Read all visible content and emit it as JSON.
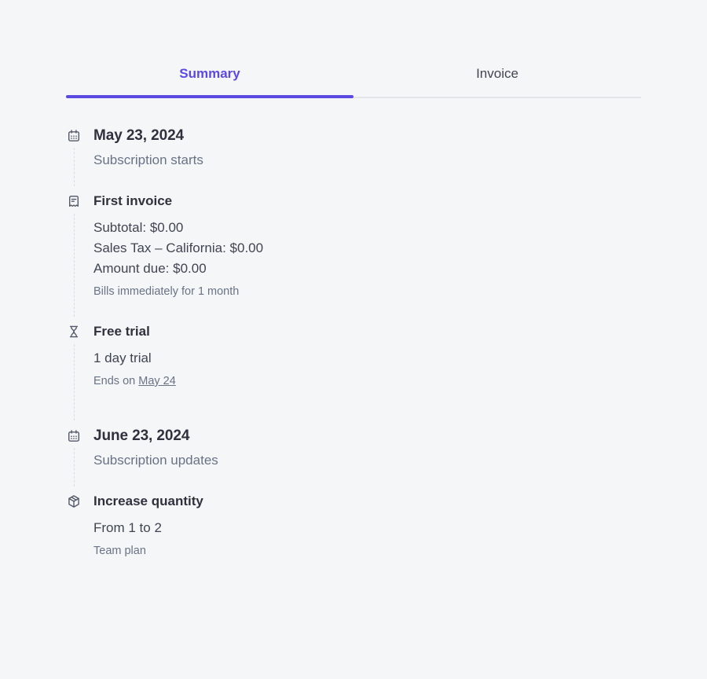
{
  "page": {
    "background": "#f5f6f8",
    "accent": "#5b4ae1",
    "text_dark": "#30313d",
    "text_body": "#414552",
    "text_muted": "#687385"
  },
  "tabs": {
    "summary": {
      "label": "Summary",
      "active": true
    },
    "invoice": {
      "label": "Invoice",
      "active": false
    }
  },
  "timeline": [
    {
      "kind": "date",
      "icon": "calendar-icon",
      "title": "May 23, 2024",
      "subtitle": "Subscription starts"
    },
    {
      "kind": "event",
      "icon": "receipt-icon",
      "title": "First invoice",
      "lines": [
        "Subtotal: $0.00",
        "Sales Tax – California: $0.00",
        "Amount due: $0.00"
      ],
      "caption": "Bills immediately for 1 month"
    },
    {
      "kind": "event",
      "icon": "hourglass-icon",
      "title": "Free trial",
      "lines": [
        "1 day trial"
      ],
      "caption_prefix": "Ends on ",
      "caption_link": "May 24"
    },
    {
      "kind": "date",
      "icon": "calendar-icon",
      "title": "June 23, 2024",
      "subtitle": "Subscription updates"
    },
    {
      "kind": "event",
      "icon": "package-icon",
      "title": "Increase quantity",
      "lines": [
        "From 1 to 2"
      ],
      "caption": "Team plan"
    }
  ]
}
